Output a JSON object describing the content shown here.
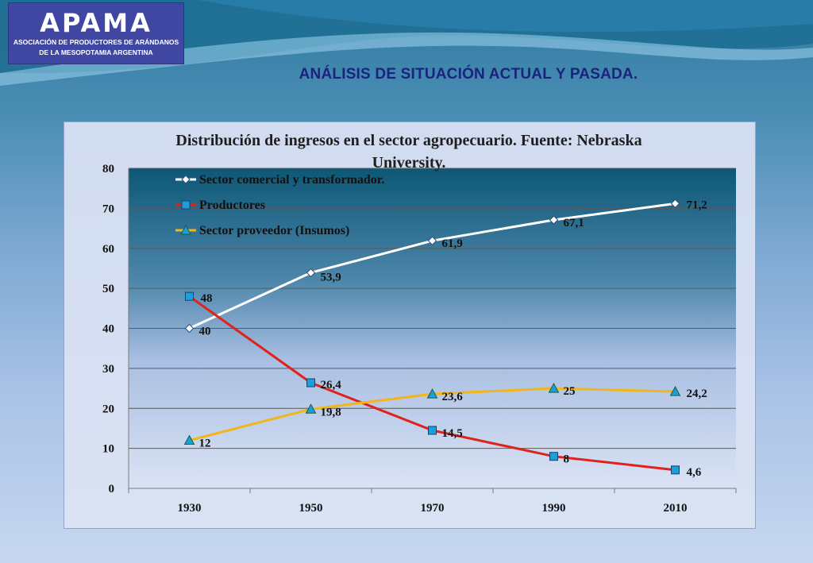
{
  "logo": {
    "mark": "APAMA",
    "line1": "ASOCIACIÓN DE PRODUCTORES DE ARÁNDANOS",
    "line2": "DE LA MESOPOTAMIA ARGENTINA"
  },
  "slide_title": "ANÁLISIS DE SITUACIÓN ACTUAL Y PASADA.",
  "colors": {
    "title": "#1a237e",
    "series_comercial": "#ffffff",
    "series_productores": "#e0221b",
    "series_proveedor": "#f2b51a",
    "marker_fill": "#1aa0d8"
  },
  "chart_data": {
    "type": "line",
    "title": "Distribución de ingresos en el sector agropecuario. Fuente: Nebraska University.",
    "categories": [
      "1930",
      "1950",
      "1970",
      "1990",
      "2010"
    ],
    "ylim": [
      0,
      80
    ],
    "yticks": [
      0,
      10,
      20,
      30,
      40,
      50,
      60,
      70,
      80
    ],
    "grid": true,
    "legend_position": "top-left",
    "series": [
      {
        "name": "Sector comercial y transformador.",
        "values": [
          40,
          53.9,
          61.9,
          67.1,
          71.2
        ],
        "labels": [
          "40",
          "53,9",
          "61,9",
          "67,1",
          "71,2"
        ],
        "marker": "diamond"
      },
      {
        "name": "Productores",
        "values": [
          48,
          26.4,
          14.5,
          8,
          4.6
        ],
        "labels": [
          "48",
          "26,4",
          "14,5",
          "8",
          "4,6"
        ],
        "marker": "square"
      },
      {
        "name": "Sector proveedor (Insumos)",
        "values": [
          12,
          19.8,
          23.6,
          25,
          24.2
        ],
        "labels": [
          "12",
          "19,8",
          "23,6",
          "25",
          "24,2"
        ],
        "marker": "triangle"
      }
    ]
  }
}
